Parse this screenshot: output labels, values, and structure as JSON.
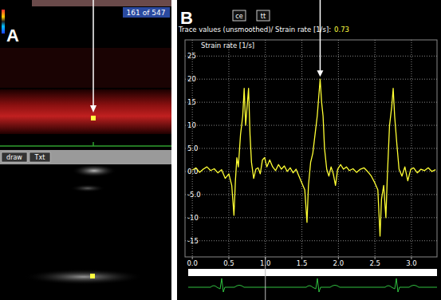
{
  "panel_a": {
    "label": "A",
    "frame_counter": "161 of 547",
    "buttons": [
      "draw",
      "Txt"
    ]
  },
  "chart_data": {
    "type": "line",
    "panel_label": "B",
    "toolbar": [
      "ce",
      "tt"
    ],
    "title": "Trace values (unsmoothed)/ Strain rate [1/s]:",
    "current_value": 0.73,
    "y_label": "Strain rate [1/s]",
    "grid": true,
    "xlim": [
      -0.1,
      3.35
    ],
    "ylim": [
      -18.5,
      28.5
    ],
    "xticks": [
      {
        "value": 0,
        "label": "0.0"
      },
      0.5,
      {
        "value": 1,
        "label": "1.0"
      },
      1.5,
      {
        "value": 2,
        "label": "2.0"
      },
      2.5,
      {
        "value": 3,
        "label": "3.0"
      }
    ],
    "yticks": [
      {
        "value": -15,
        "label": "-15"
      },
      {
        "value": -10,
        "label": "-10"
      },
      {
        "value": -5,
        "label": "-5.0"
      },
      {
        "value": 0,
        "label": "0.0"
      },
      {
        "value": 5,
        "label": "5.0"
      },
      10,
      15,
      20,
      25
    ],
    "annotations": [
      {
        "x": 1.75,
        "y": 20
      }
    ],
    "cursor_x": 1.0,
    "x": [
      0.0,
      0.05,
      0.1,
      0.15,
      0.2,
      0.25,
      0.3,
      0.35,
      0.4,
      0.45,
      0.5,
      0.54,
      0.57,
      0.59,
      0.61,
      0.63,
      0.66,
      0.69,
      0.71,
      0.73,
      0.75,
      0.77,
      0.79,
      0.81,
      0.84,
      0.87,
      0.9,
      0.93,
      0.96,
      0.99,
      1.02,
      1.06,
      1.1,
      1.14,
      1.18,
      1.22,
      1.26,
      1.3,
      1.34,
      1.38,
      1.42,
      1.46,
      1.5,
      1.54,
      1.57,
      1.59,
      1.62,
      1.65,
      1.68,
      1.71,
      1.73,
      1.75,
      1.77,
      1.79,
      1.81,
      1.84,
      1.87,
      1.9,
      1.93,
      1.96,
      1.99,
      2.03,
      2.07,
      2.11,
      2.15,
      2.2,
      2.25,
      2.3,
      2.35,
      2.4,
      2.45,
      2.5,
      2.54,
      2.57,
      2.59,
      2.62,
      2.65,
      2.67,
      2.7,
      2.73,
      2.75,
      2.77,
      2.8,
      2.83,
      2.87,
      2.91,
      2.95,
      2.99,
      3.03,
      3.08,
      3.13,
      3.18,
      3.23,
      3.28,
      3.33
    ],
    "series": [
      {
        "color": "#ffff33",
        "line_style": "solid",
        "values": [
          0.3,
          0.8,
          -0.2,
          0.5,
          1.0,
          0.2,
          0.6,
          -0.3,
          0.4,
          -1.5,
          -0.5,
          -3.0,
          -9.5,
          -2.0,
          3.0,
          1.0,
          8.0,
          12.0,
          18.0,
          10.0,
          14.0,
          18.0,
          8.0,
          2.0,
          -1.5,
          0.5,
          0.8,
          -0.5,
          2.5,
          3.0,
          1.0,
          2.5,
          1.0,
          0.2,
          1.5,
          0.5,
          1.2,
          0.0,
          0.8,
          -0.3,
          0.5,
          -1.0,
          -2.5,
          -4.0,
          -11.0,
          -3.0,
          2.0,
          4.0,
          8.0,
          12.0,
          16.0,
          20.0,
          15.0,
          12.0,
          5.0,
          0.5,
          -1.0,
          1.0,
          -0.5,
          -3.0,
          0.5,
          1.5,
          0.5,
          1.0,
          0.2,
          0.6,
          -0.2,
          0.5,
          0.8,
          0.0,
          -1.0,
          -2.5,
          -4.0,
          -14.0,
          -6.0,
          -3.0,
          -10.0,
          -1.0,
          10.0,
          14.0,
          18.0,
          12.0,
          6.0,
          0.5,
          -1.0,
          1.0,
          -2.0,
          0.5,
          0.8,
          -0.3,
          0.5,
          0.2,
          0.8,
          0.0,
          0.4
        ]
      }
    ]
  }
}
